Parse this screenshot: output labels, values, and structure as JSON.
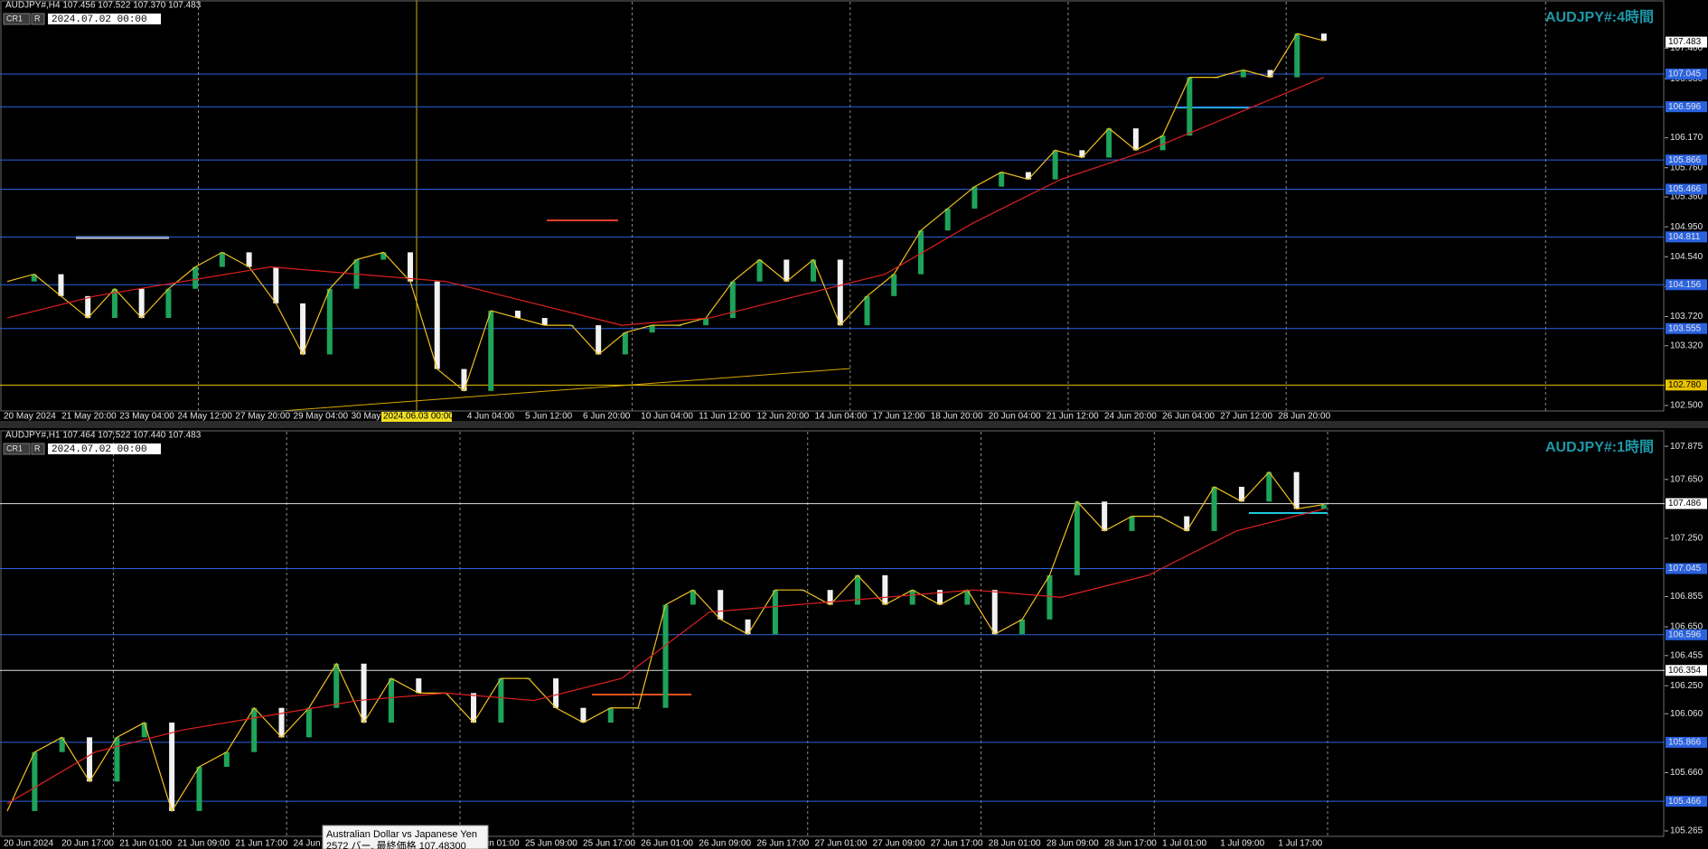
{
  "panels": [
    {
      "header": "AUDJPY#,H4  107.456 107.522 107.370 107.483",
      "buttons": [
        "CR1",
        "R"
      ],
      "date": "2024.07.02 00:00",
      "watermark": "AUDJPY#:4時間",
      "ylim": [
        102.425,
        108.06
      ],
      "yticks": [
        {
          "value": 107.4,
          "label": "107.400"
        },
        {
          "value": 106.98,
          "label": "106.980"
        },
        {
          "value": 106.17,
          "label": "106.170"
        },
        {
          "value": 105.76,
          "label": "105.760"
        },
        {
          "value": 105.36,
          "label": "105.360"
        },
        {
          "value": 104.95,
          "label": "104.950"
        },
        {
          "value": 104.54,
          "label": "104.540"
        },
        {
          "value": 104.13,
          "label": "104.130"
        },
        {
          "value": 103.72,
          "label": "103.720"
        },
        {
          "value": 103.32,
          "label": "103.320"
        },
        {
          "value": 102.5,
          "label": "102.500"
        }
      ],
      "price": 107.483,
      "levels": [
        107.045,
        106.596,
        105.866,
        105.466,
        104.811,
        104.156,
        103.555,
        {
          "value": 102.78,
          "label": "102.780"
        }
      ],
      "level_colors": [
        "#2a62e0",
        "#2a62e0",
        "#2a62e0",
        "#2a62e0",
        "#2a62e0",
        "#2a62e0",
        "#2a62e0",
        "#e8c200"
      ],
      "times": [
        "20 May 2024",
        "21 May 20:00",
        "23 May 04:00",
        "24 May 12:00",
        "27 May 20:00",
        "29 May 04:00",
        "30 May",
        null,
        "4 Jun 04:00",
        "5 Jun 12:00",
        "6 Jun 20:00",
        "10 Jun 04:00",
        "11 Jun 12:00",
        "12 Jun 20:00",
        "14 Jun 04:00",
        "17 Jun 12:00",
        "18 Jun 20:00",
        "20 Jun 04:00",
        "21 Jun 12:00",
        "24 Jun 20:00",
        "26 Jun 04:00",
        "27 Jun 12:00",
        "28 Jun 20:00"
      ],
      "close": [
        104.2,
        104.3,
        104.0,
        103.7,
        104.1,
        103.7,
        104.1,
        104.4,
        104.6,
        104.4,
        103.9,
        103.2,
        104.1,
        104.5,
        104.6,
        104.2,
        103.0,
        102.7,
        103.8,
        103.7,
        103.6,
        103.6,
        103.2,
        103.5,
        103.6,
        103.6,
        103.7,
        104.2,
        104.5,
        104.2,
        104.5,
        103.6,
        104.0,
        104.3,
        104.9,
        105.2,
        105.5,
        105.7,
        105.6,
        106.0,
        105.9,
        106.3,
        106.0,
        106.2,
        107.0,
        107.0,
        107.1,
        107.0,
        107.6,
        107.5
      ],
      "ma": [
        103.7,
        104.0,
        104.2,
        104.4,
        104.3,
        104.2,
        103.9,
        103.6,
        103.7,
        104.0,
        104.3,
        105.0,
        105.6,
        106.0,
        106.5,
        107.0
      ],
      "crosshair": "2024.06.03 00:00"
    },
    {
      "header": "AUDJPY#,H1  107.464 107.522 107.440 107.483",
      "buttons": [
        "CR1",
        "R"
      ],
      "date": "2024.07.02 00:00",
      "watermark": "AUDJPY#:1時間",
      "ylim": [
        105.228,
        107.986
      ],
      "yticks": [
        107.875,
        {
          "value": 107.65,
          "label": "107.650"
        },
        {
          "value": 107.25,
          "label": "107.250"
        },
        106.855,
        {
          "value": 106.65,
          "label": "106.650"
        },
        106.455,
        {
          "value": 106.25,
          "label": "106.250"
        },
        {
          "value": 106.06,
          "label": "106.060"
        },
        {
          "value": 105.66,
          "label": "105.660"
        },
        105.265
      ],
      "levels": [
        107.486,
        107.045,
        106.596,
        106.354,
        105.866,
        105.466
      ],
      "level_colors": [
        "#e0e0e0",
        "#2a62e0",
        "#2a62e0",
        "#e0e0e0",
        "#2a62e0",
        "#2a62e0"
      ],
      "times": [
        "20 Jun 2024",
        "20 Jun 17:00",
        "21 Jun 01:00",
        "21 Jun 09:00",
        "21 Jun 17:00",
        "24 Jun",
        null,
        null,
        "25 Jun 01:00",
        "25 Jun 09:00",
        "25 Jun 17:00",
        "26 Jun 01:00",
        "26 Jun 09:00",
        "26 Jun 17:00",
        "27 Jun 01:00",
        "27 Jun 09:00",
        "27 Jun 17:00",
        "28 Jun 01:00",
        "28 Jun 09:00",
        "28 Jun 17:00",
        "1 Jul 01:00",
        "1 Jul 09:00",
        "1 Jul 17:00"
      ],
      "close": [
        105.4,
        105.8,
        105.9,
        105.6,
        105.9,
        106.0,
        105.4,
        105.7,
        105.8,
        106.1,
        105.9,
        106.1,
        106.4,
        106.0,
        106.3,
        106.2,
        106.2,
        106.0,
        106.3,
        106.3,
        106.1,
        106.0,
        106.1,
        106.1,
        106.8,
        106.9,
        106.7,
        106.6,
        106.9,
        106.9,
        106.8,
        107.0,
        106.8,
        106.9,
        106.8,
        106.9,
        106.6,
        106.7,
        107.0,
        107.5,
        107.3,
        107.4,
        107.4,
        107.3,
        107.6,
        107.5,
        107.7,
        107.45,
        107.48
      ],
      "ma": [
        105.45,
        105.8,
        105.95,
        106.05,
        106.15,
        106.2,
        106.15,
        106.3,
        106.75,
        106.8,
        106.85,
        106.9,
        106.85,
        107.0,
        107.3,
        107.45
      ],
      "tooltip": [
        "Australian Dollar vs Japanese Yen",
        "2572 バー, 最終価格 107.48300"
      ]
    }
  ]
}
